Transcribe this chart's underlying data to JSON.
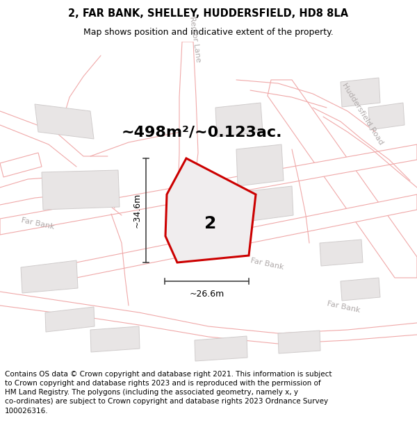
{
  "title": "2, FAR BANK, SHELLEY, HUDDERSFIELD, HD8 8LA",
  "subtitle": "Map shows position and indicative extent of the property.",
  "area_text": "~498m²/~0.123ac.",
  "dim_vertical": "~34.6m",
  "dim_horizontal": "~26.6m",
  "plot_label": "2",
  "footer_text": "Contains OS data © Crown copyright and database right 2021. This information is subject to Crown copyright and database rights 2023 and is reproduced with the permission of HM Land Registry. The polygons (including the associated geometry, namely x, y co-ordinates) are subject to Crown copyright and database rights 2023 Ordnance Survey 100026316.",
  "bg_color": "#ffffff",
  "map_bg": "#ffffff",
  "road_line_color": "#f0a8a8",
  "building_fill": "#e8e5e5",
  "building_edge": "#d0cccc",
  "plot_fill": "#f0edee",
  "plot_edge": "#cc0000",
  "plot_lw": 2.2,
  "dim_color": "#444444",
  "road_label_color": "#b0aaaa",
  "title_fontsize": 10.5,
  "subtitle_fontsize": 9,
  "area_fontsize": 16,
  "plot_label_fontsize": 18,
  "footer_fontsize": 7.5,
  "dim_fontsize": 9
}
